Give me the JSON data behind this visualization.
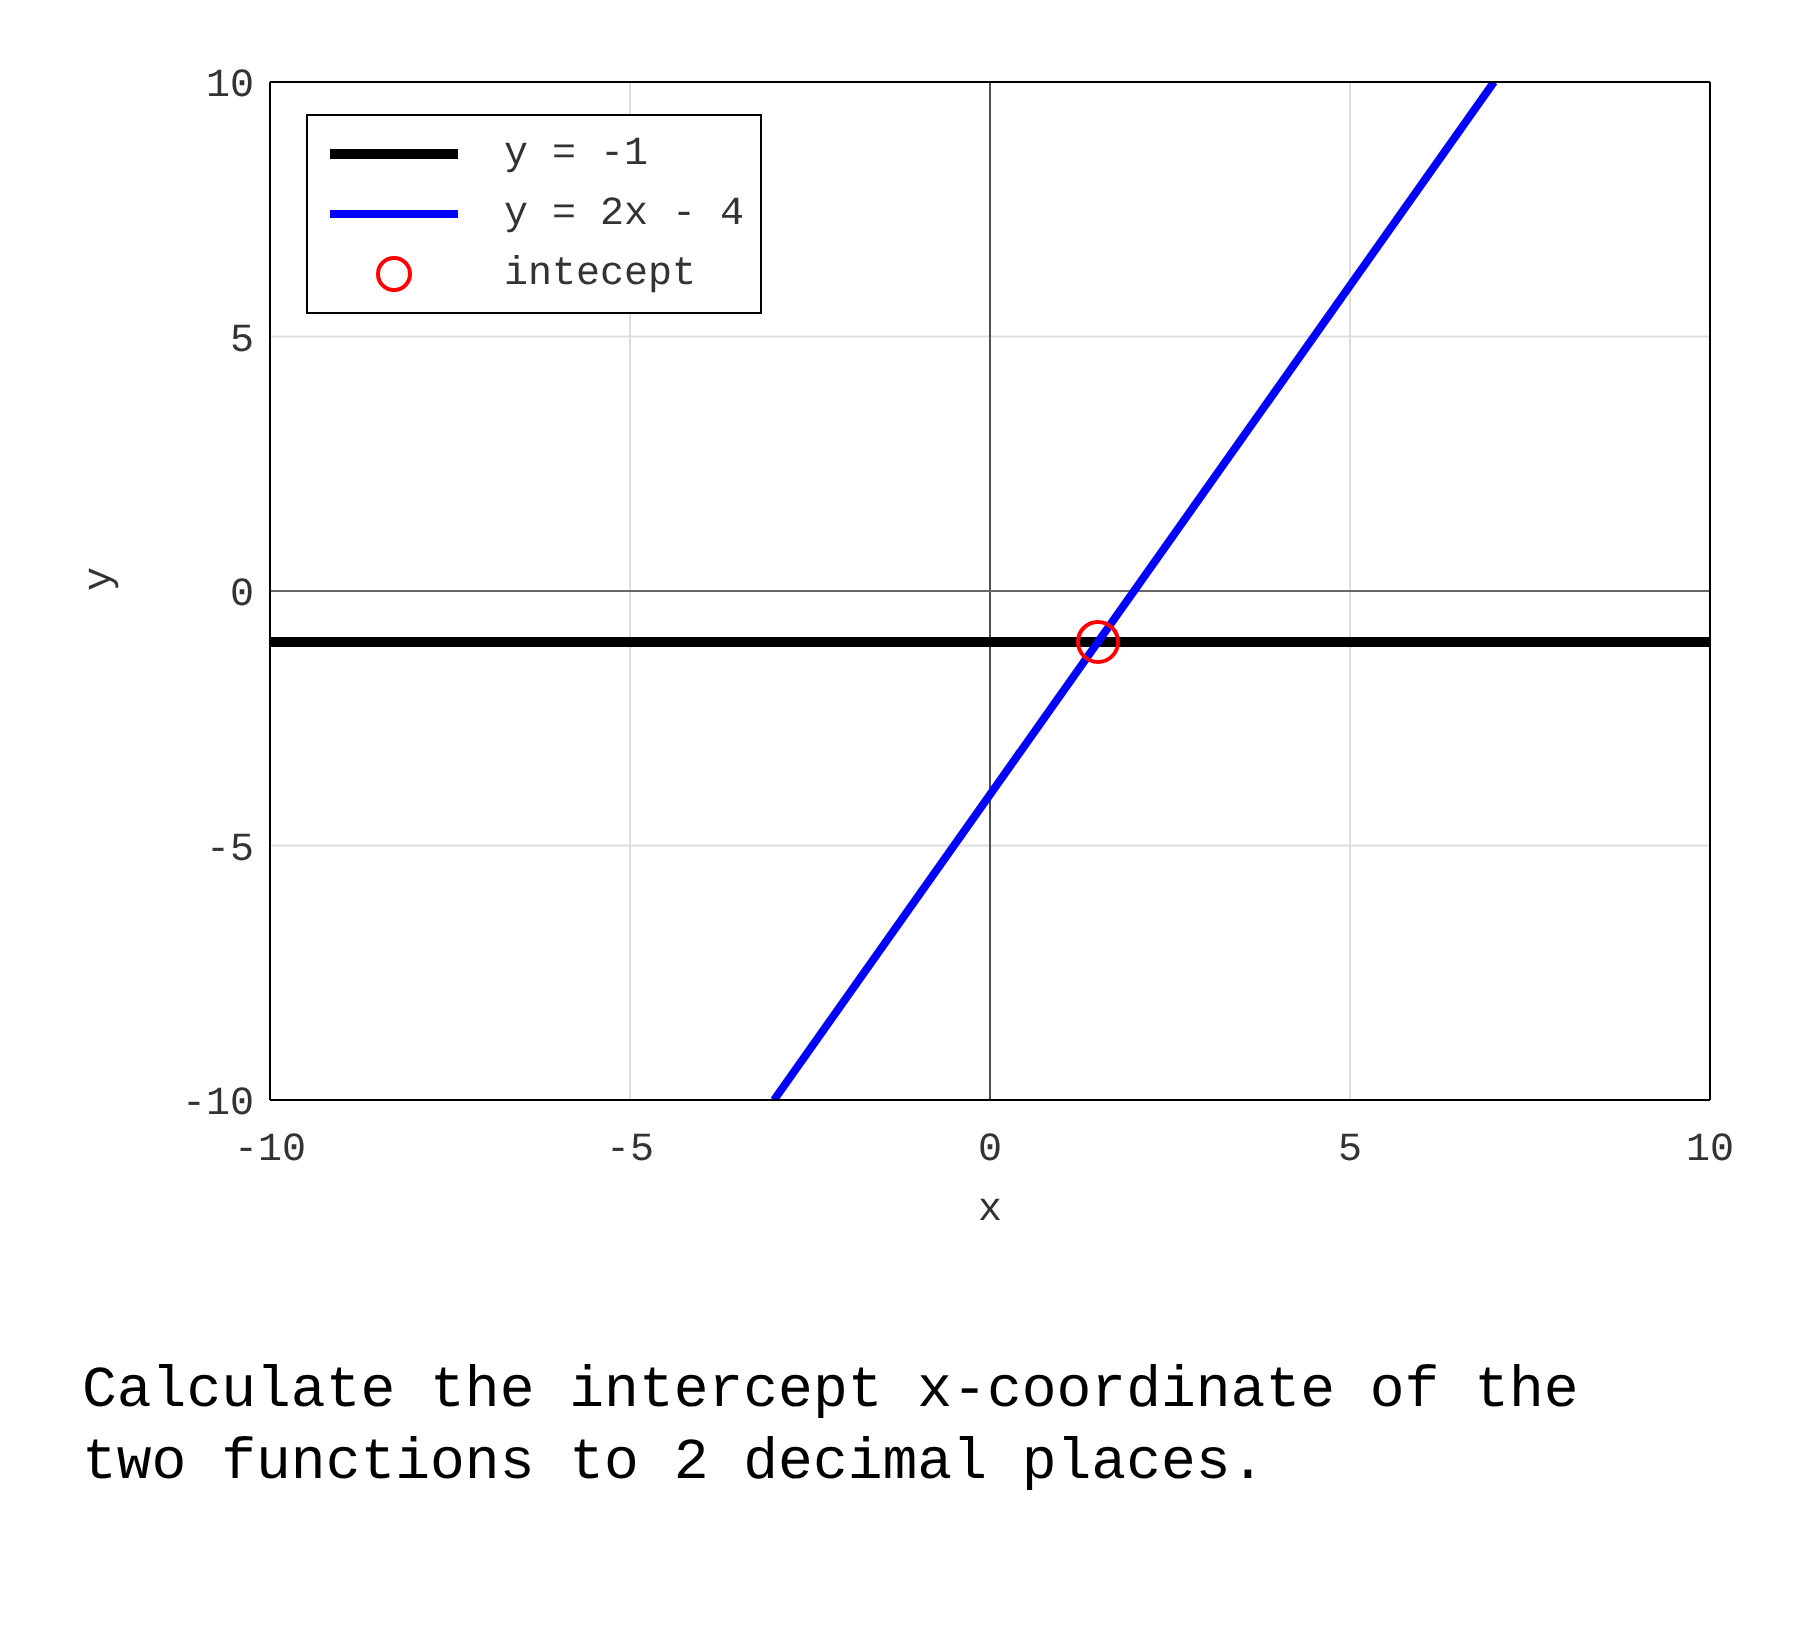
{
  "chart_data": {
    "type": "line",
    "xlabel": "x",
    "ylabel": "y",
    "xlim": [
      -10,
      10
    ],
    "ylim": [
      -10,
      10
    ],
    "xticks": [
      -10,
      -5,
      0,
      5,
      10
    ],
    "yticks": [
      -10,
      -5,
      0,
      5,
      10
    ],
    "grid": true,
    "legend": "top left",
    "series": [
      {
        "name": "y = -1",
        "color": "#000000",
        "x": [
          -10,
          10
        ],
        "values": [
          -1,
          -1
        ]
      },
      {
        "name": "y = 2x - 4",
        "color": "#0000ff",
        "x": [
          -3,
          7
        ],
        "values": [
          -10,
          10
        ]
      },
      {
        "name": "intecept",
        "type": "scatter",
        "marker": "circle",
        "color": "#ff0000",
        "x": [
          1.5
        ],
        "values": [
          -1
        ]
      }
    ],
    "ref_lines": [
      {
        "axis": "x",
        "value": 0,
        "color": "#505050"
      },
      {
        "axis": "y",
        "value": 0,
        "color": "#686868"
      }
    ],
    "annotations": [
      "Calculate the intercept x-coordinate of the two functions to 2 decimal places."
    ]
  }
}
